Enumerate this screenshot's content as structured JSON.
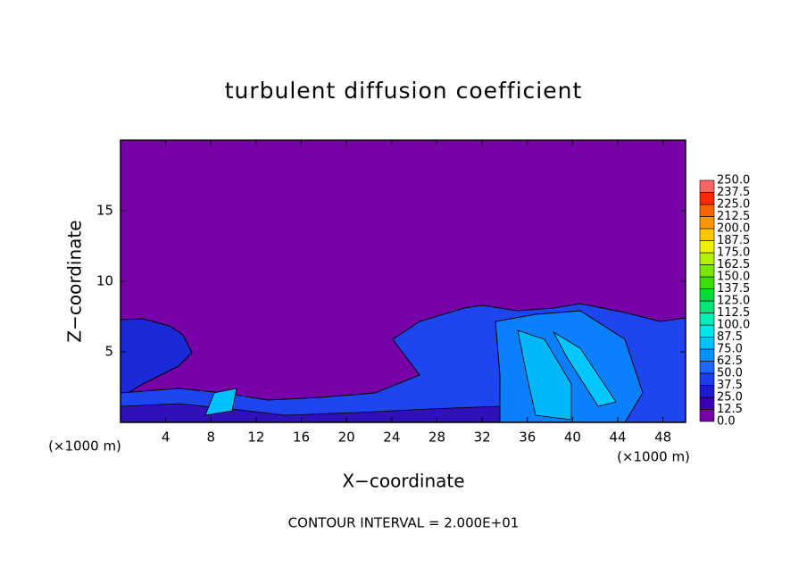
{
  "chart_data": {
    "type": "contour",
    "title": "turbulent diffusion coefficient",
    "xlabel": "X−coordinate",
    "ylabel": "Z−coordinate",
    "x_unit_label": "(×1000 m)",
    "y_unit_label": "(×1000 m)",
    "annotation": "CONTOUR INTERVAL = 2.000E+01",
    "xlim": [
      0,
      50
    ],
    "xticks": [
      4,
      8,
      12,
      16,
      20,
      24,
      28,
      32,
      36,
      40,
      44,
      48
    ],
    "ylim": [
      0,
      20
    ],
    "yticks": [
      5,
      10,
      15
    ],
    "colorbar": {
      "ticks": [
        {
          "value": 0,
          "label": "0.0"
        },
        {
          "value": 12.5,
          "label": "12.5"
        },
        {
          "value": 25,
          "label": "25.0"
        },
        {
          "value": 37.5,
          "label": "37.5"
        },
        {
          "value": 50,
          "label": "50.0"
        },
        {
          "value": 62.5,
          "label": "62.5"
        },
        {
          "value": 75,
          "label": "75.0"
        },
        {
          "value": 87.5,
          "label": "87.5"
        },
        {
          "value": 100,
          "label": "100.0"
        },
        {
          "value": 112.5,
          "label": "112.5"
        },
        {
          "value": 125,
          "label": "125.0"
        },
        {
          "value": 137.5,
          "label": "137.5"
        },
        {
          "value": 150,
          "label": "150.0"
        },
        {
          "value": 162.5,
          "label": "162.5"
        },
        {
          "value": 175,
          "label": "175.0"
        },
        {
          "value": 187.5,
          "label": "187.5"
        },
        {
          "value": 200,
          "label": "200.0"
        },
        {
          "value": 212.5,
          "label": "212.5"
        },
        {
          "value": 225,
          "label": "225.0"
        },
        {
          "value": 237.5,
          "label": "237.5"
        },
        {
          "value": 250,
          "label": "250.0"
        }
      ],
      "colors": [
        "#7800a8",
        "#3c00b4",
        "#1a1ad0",
        "#1e3cf0",
        "#1e64ff",
        "#0090ff",
        "#00c0ff",
        "#00e6e6",
        "#00f0b4",
        "#00e678",
        "#00dc3c",
        "#3cdc00",
        "#78e600",
        "#b4f000",
        "#f0f000",
        "#ffc800",
        "#ff9600",
        "#ff6400",
        "#ff2800",
        "#ff6464"
      ]
    }
  }
}
